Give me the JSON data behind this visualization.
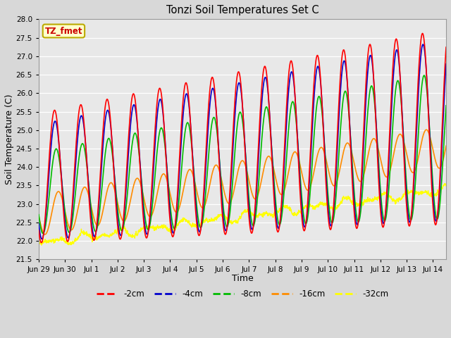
{
  "title": "Tonzi Soil Temperatures Set C",
  "xlabel": "Time",
  "ylabel": "Soil Temperature (C)",
  "ylim": [
    21.5,
    28.0
  ],
  "series_colors": {
    "-2cm": "#FF0000",
    "-4cm": "#0000CC",
    "-8cm": "#00BB00",
    "-16cm": "#FF8C00",
    "-32cm": "#FFFF00"
  },
  "legend_label": "TZ_fmet",
  "legend_bg": "#FFFFCC",
  "legend_border": "#BBAA00",
  "bg_color": "#E0E0E0",
  "tick_labels": [
    "Jun 29",
    "Jun 30",
    "Jul 1",
    "Jul 2",
    "Jul 3",
    "Jul 4",
    "Jul 5",
    "Jul 6",
    "Jul 7",
    "Jul 8",
    "Jul 9",
    "Jul 10",
    "Jul 11",
    "Jul 12",
    "Jul 13",
    "Jul 14"
  ],
  "tick_positions": [
    0,
    1,
    2,
    3,
    4,
    5,
    6,
    7,
    8,
    9,
    10,
    11,
    12,
    13,
    14,
    15
  ],
  "xlim": [
    0,
    15.5
  ]
}
